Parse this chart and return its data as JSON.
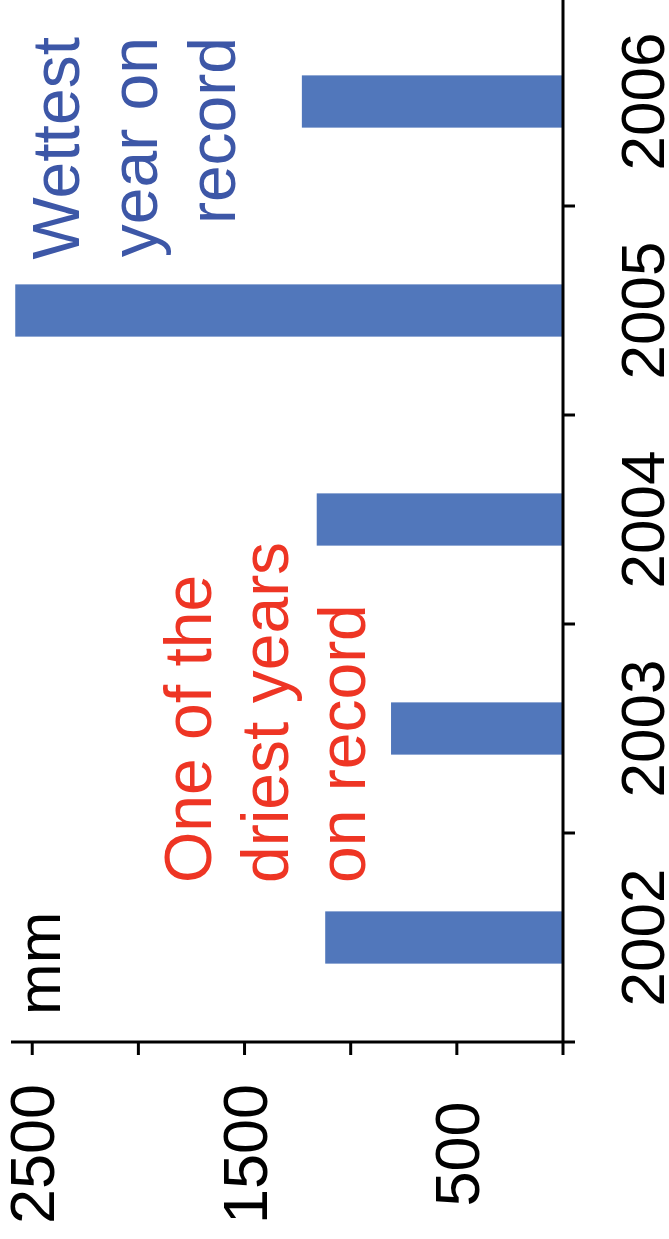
{
  "chart_data": {
    "type": "bar",
    "orientation": "horizontal",
    "categories": [
      "2006",
      "2005",
      "2004",
      "2003",
      "2002"
    ],
    "values": [
      1230,
      2580,
      1160,
      810,
      1120
    ],
    "color": "#5177bb",
    "ylabel": "mm",
    "xlim": [
      2600,
      0
    ],
    "xticks": [
      2500,
      {
        "value": 2000,
        "label": null
      },
      1500,
      {
        "value": 1000,
        "label": null
      },
      500,
      {
        "value": 0,
        "label": null
      }
    ],
    "annotations": [
      "Wettest\nyear on\nrecord",
      "One of the\ndriest years\non record"
    ],
    "grid": false
  }
}
